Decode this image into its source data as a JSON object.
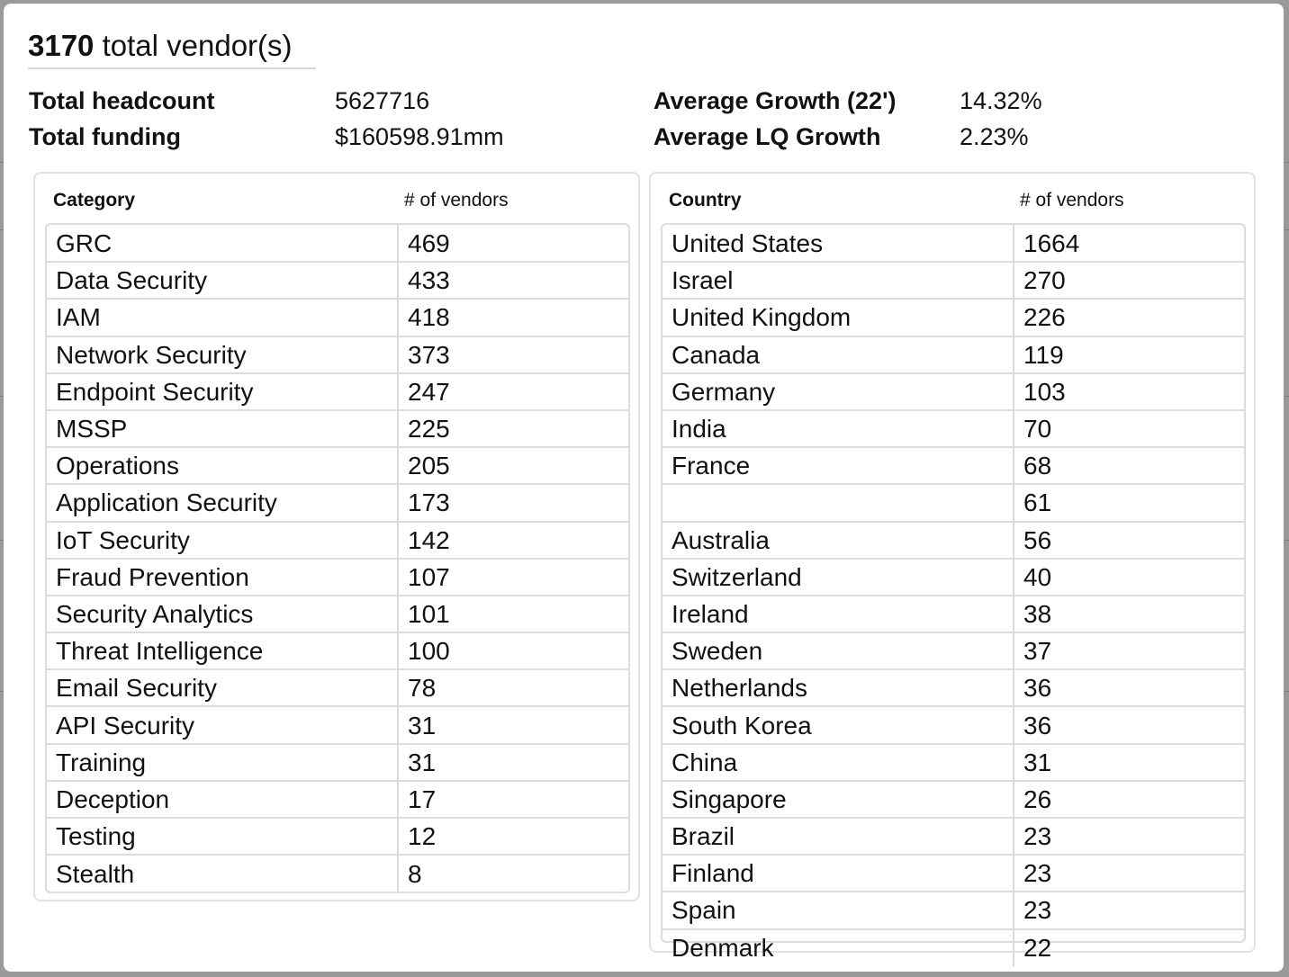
{
  "summary": {
    "vendor_count": "3170",
    "vendor_suffix": "total vendor(s)",
    "headcount_label": "Total headcount",
    "headcount_value": "5627716",
    "funding_label": "Total funding",
    "funding_value": "$160598.91mm",
    "growth_label": "Average Growth (22')",
    "growth_value": "14.32%",
    "lq_growth_label": "Average LQ Growth",
    "lq_growth_value": "2.23%"
  },
  "category_table": {
    "col1": "Category",
    "col2": "# of vendors",
    "rows": [
      {
        "name": "GRC",
        "count": "469"
      },
      {
        "name": "Data Security",
        "count": "433"
      },
      {
        "name": "IAM",
        "count": "418"
      },
      {
        "name": "Network Security",
        "count": "373"
      },
      {
        "name": "Endpoint Security",
        "count": "247"
      },
      {
        "name": "MSSP",
        "count": "225"
      },
      {
        "name": "Operations",
        "count": "205"
      },
      {
        "name": "Application Security",
        "count": "173"
      },
      {
        "name": "IoT Security",
        "count": "142"
      },
      {
        "name": "Fraud Prevention",
        "count": "107"
      },
      {
        "name": "Security Analytics",
        "count": "101"
      },
      {
        "name": "Threat Intelligence",
        "count": "100"
      },
      {
        "name": "Email Security",
        "count": "78"
      },
      {
        "name": "API Security",
        "count": "31"
      },
      {
        "name": "Training",
        "count": "31"
      },
      {
        "name": "Deception",
        "count": "17"
      },
      {
        "name": "Testing",
        "count": "12"
      },
      {
        "name": "Stealth",
        "count": "8"
      }
    ]
  },
  "country_table": {
    "col1": "Country",
    "col2": "# of vendors",
    "rows": [
      {
        "name": "United States",
        "count": "1664"
      },
      {
        "name": "Israel",
        "count": "270"
      },
      {
        "name": "United Kingdom",
        "count": "226"
      },
      {
        "name": "Canada",
        "count": "119"
      },
      {
        "name": "Germany",
        "count": "103"
      },
      {
        "name": "India",
        "count": "70"
      },
      {
        "name": "France",
        "count": "68"
      },
      {
        "name": "",
        "count": "61"
      },
      {
        "name": "Australia",
        "count": "56"
      },
      {
        "name": "Switzerland",
        "count": "40"
      },
      {
        "name": "Ireland",
        "count": "38"
      },
      {
        "name": "Sweden",
        "count": "37"
      },
      {
        "name": "Netherlands",
        "count": "36"
      },
      {
        "name": "South Korea",
        "count": "36"
      },
      {
        "name": "China",
        "count": "31"
      },
      {
        "name": "Singapore",
        "count": "26"
      },
      {
        "name": "Brazil",
        "count": "23"
      },
      {
        "name": "Finland",
        "count": "23"
      },
      {
        "name": "Spain",
        "count": "23"
      },
      {
        "name": "Denmark",
        "count": "22"
      }
    ]
  },
  "colors": {
    "modal_bg": "#ffffff",
    "overlay": "#8c8c8c",
    "border": "#dcdcdc"
  }
}
